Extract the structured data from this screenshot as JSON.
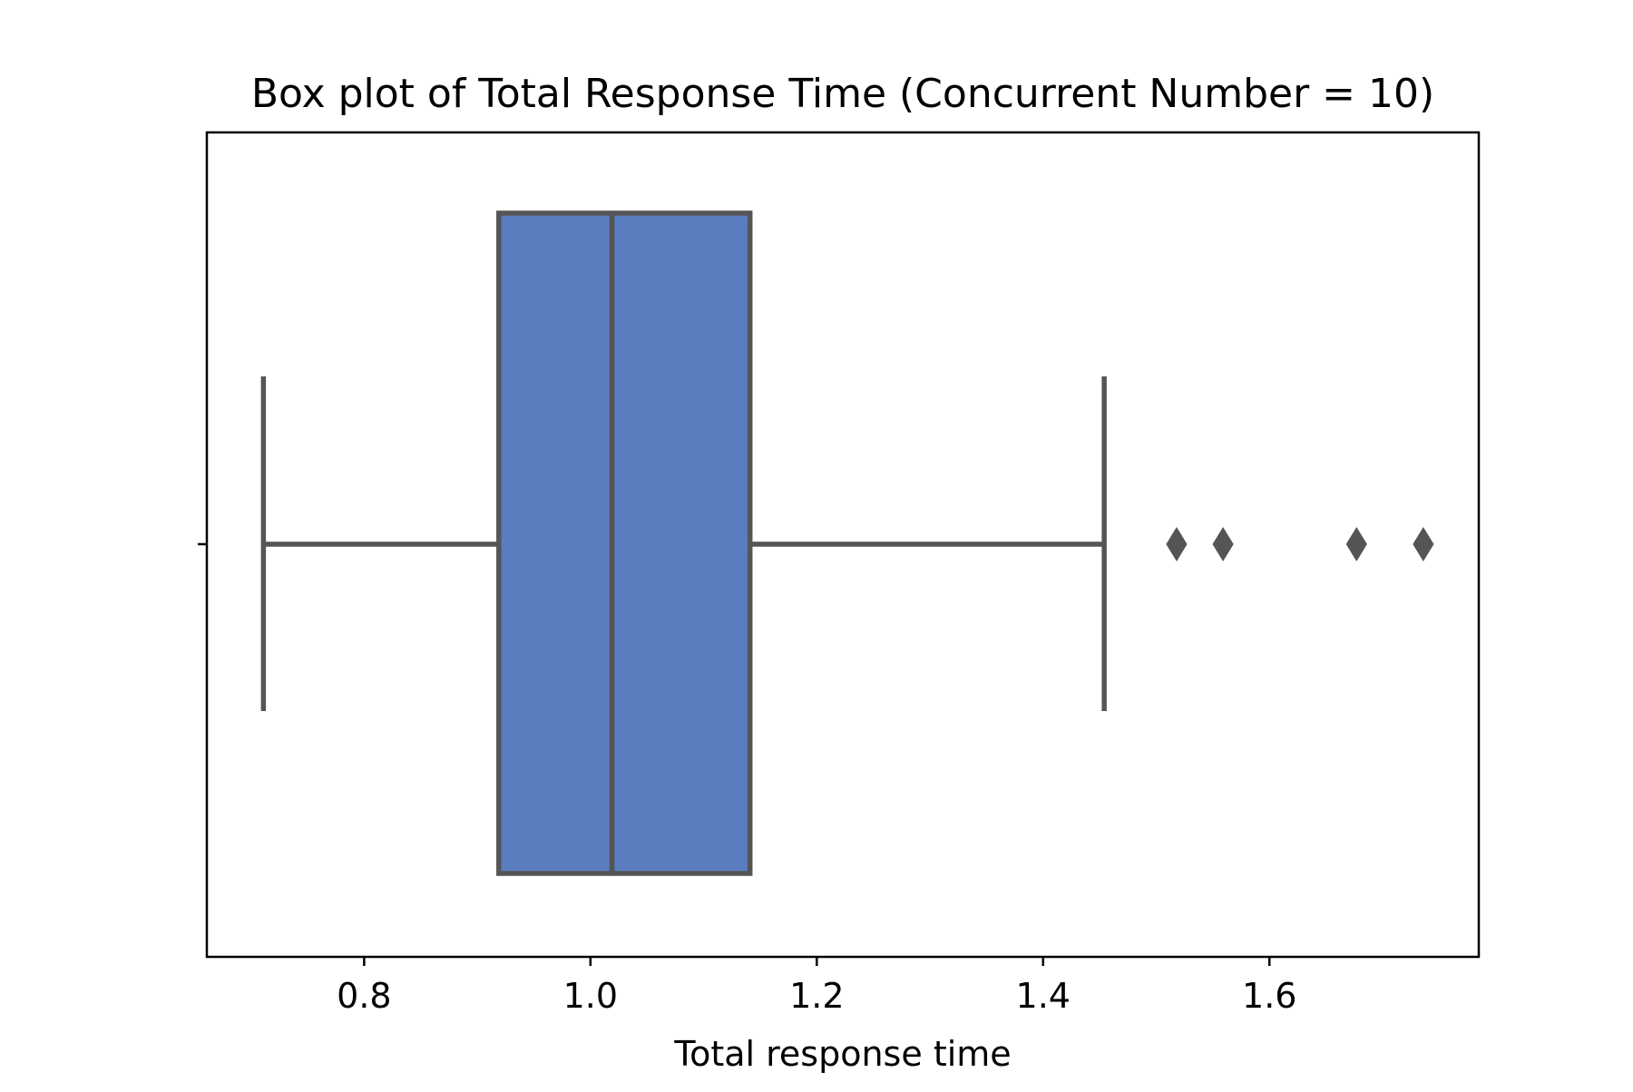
{
  "chart_data": {
    "type": "box",
    "title": "Box plot of Total Response Time (Concurrent Number = 10)",
    "xlabel": "Total response time",
    "ylabel": "",
    "xlim": [
      0.661,
      1.785
    ],
    "xticks": [
      0.8,
      1.0,
      1.2,
      1.4,
      1.6
    ],
    "xtick_labels": [
      "0.8",
      "1.0",
      "1.2",
      "1.4",
      "1.6"
    ],
    "grid": false,
    "box": {
      "whisker_low": 0.711,
      "q1": 0.919,
      "median": 1.019,
      "q3": 1.141,
      "whisker_high": 1.454
    },
    "outliers": [
      1.518,
      1.559,
      1.677,
      1.736
    ],
    "outlier_marker": "diamond",
    "colors": {
      "box_fill": "#5a7dbf",
      "line": "#555555",
      "axes": "#000000"
    }
  }
}
